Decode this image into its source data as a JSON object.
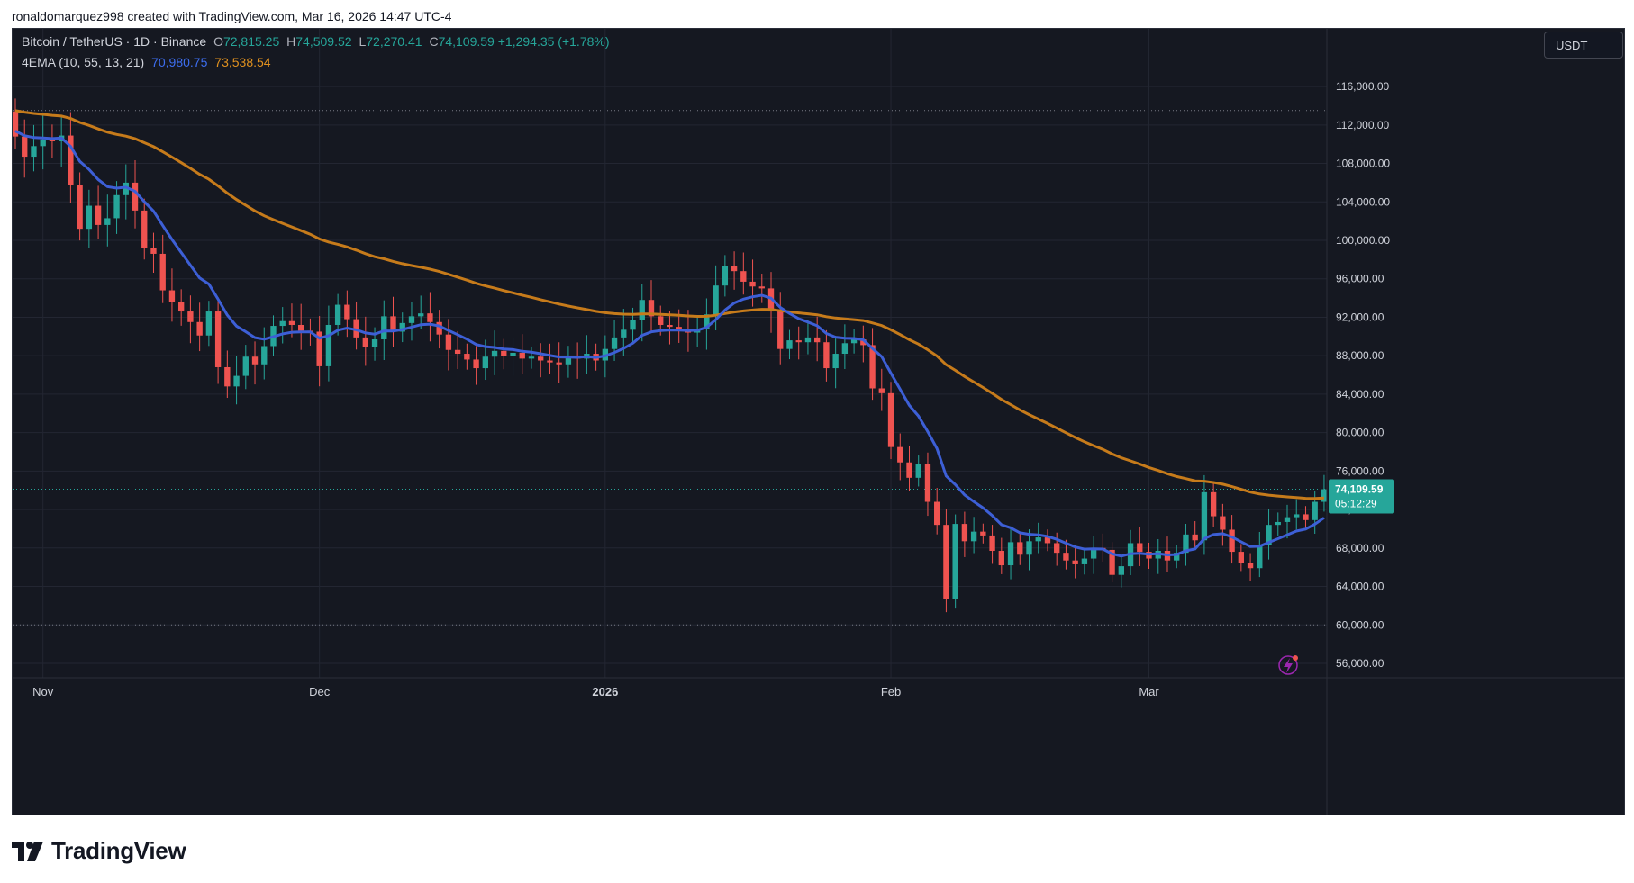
{
  "header": {
    "snapshot_text": "ronaldomarquez998 created with TradingView.com, Mar 16, 2026 14:47 UTC-4"
  },
  "legend": {
    "symbol": "Bitcoin / TetherUS · 1D · Binance",
    "open_label": "O",
    "open": "72,815.25",
    "high_label": "H",
    "high": "74,509.52",
    "low_label": "L",
    "low": "72,270.41",
    "close_label": "C",
    "close": "74,109.59",
    "change": "+1,294.35 (+1.78%)",
    "indicator": "4EMA (10, 55, 13, 21)",
    "ema_fast_value": "70,980.75",
    "ema_slow_value": "73,538.54"
  },
  "currency_button": "USDT",
  "branding": {
    "name": "TradingView"
  },
  "colors": {
    "background": "#151821",
    "up": "#26a69a",
    "down": "#ef5350",
    "ema_fast": "#3d5fd6",
    "ema_slow": "#c67b1b",
    "axis_text": "#d1d4dc"
  },
  "chart_data": {
    "type": "candlestick",
    "title": "Bitcoin / TetherUS · 1D · Binance",
    "y_ticks": [
      "56,000.00",
      "60,000.00",
      "64,000.00",
      "68,000.00",
      "72,000.00",
      "76,000.00",
      "80,000.00",
      "84,000.00",
      "88,000.00",
      "92,000.00",
      "96,000.00",
      "100,000.00",
      "104,000.00",
      "108,000.00",
      "112,000.00",
      "116,000.00"
    ],
    "ylim": [
      54500,
      122000
    ],
    "x_labels": [
      "Nov",
      "Dec",
      "2026",
      "Feb",
      "Mar"
    ],
    "x_label_dates": [
      "2025-11-01",
      "2025-12-01",
      "2026-01-01",
      "2026-02-01",
      "2026-03-01"
    ],
    "first_date": "2025-10-29",
    "last_date": "2026-03-16",
    "last_price_label": "74,109.59",
    "countdown_label": "05:12:29",
    "last_price": 74109.59,
    "reference_lines": [
      113500,
      60000
    ],
    "closes": [
      110800,
      108700,
      109800,
      110500,
      110300,
      110900,
      105800,
      101200,
      103600,
      101600,
      102300,
      104700,
      106000,
      103100,
      99200,
      98600,
      94800,
      93600,
      92600,
      91500,
      90100,
      92600,
      86800,
      84800,
      85900,
      87900,
      87100,
      89000,
      91100,
      91600,
      91200,
      90600,
      90500,
      86900,
      91200,
      93300,
      91800,
      89900,
      88900,
      89700,
      92100,
      90500,
      91400,
      92100,
      92400,
      91500,
      90200,
      88600,
      88200,
      87600,
      86700,
      87900,
      88500,
      88000,
      88300,
      87700,
      87900,
      87500,
      87300,
      87100,
      87800,
      87700,
      88200,
      87500,
      88700,
      89900,
      90700,
      91700,
      93800,
      92100,
      91200,
      91000,
      90600,
      90400,
      90800,
      92300,
      95300,
      97300,
      96800,
      95700,
      95200,
      95000,
      92600,
      88700,
      89600,
      89400,
      89900,
      89400,
      86700,
      88200,
      89300,
      89700,
      89100,
      84600,
      84100,
      78500,
      76900,
      75300,
      76700,
      72800,
      70400,
      62700,
      70500,
      68700,
      69700,
      69300,
      67700,
      66200,
      68600,
      67300,
      68700,
      69100,
      68500,
      67500,
      66700,
      66300,
      66900,
      68000,
      67800,
      65200,
      66100,
      68500,
      67600,
      66900,
      67700,
      66700,
      67500,
      69400,
      68800,
      73800,
      71300,
      69900,
      67600,
      66400,
      65900,
      68300,
      70400,
      70700,
      71200,
      71500,
      70900,
      72800,
      74109.59
    ],
    "series": [
      {
        "name": "EMA 10",
        "last_value": "70,980.75"
      },
      {
        "name": "EMA 55",
        "last_value": "73,538.54"
      }
    ],
    "grid": true,
    "legend_position": "top-left"
  }
}
